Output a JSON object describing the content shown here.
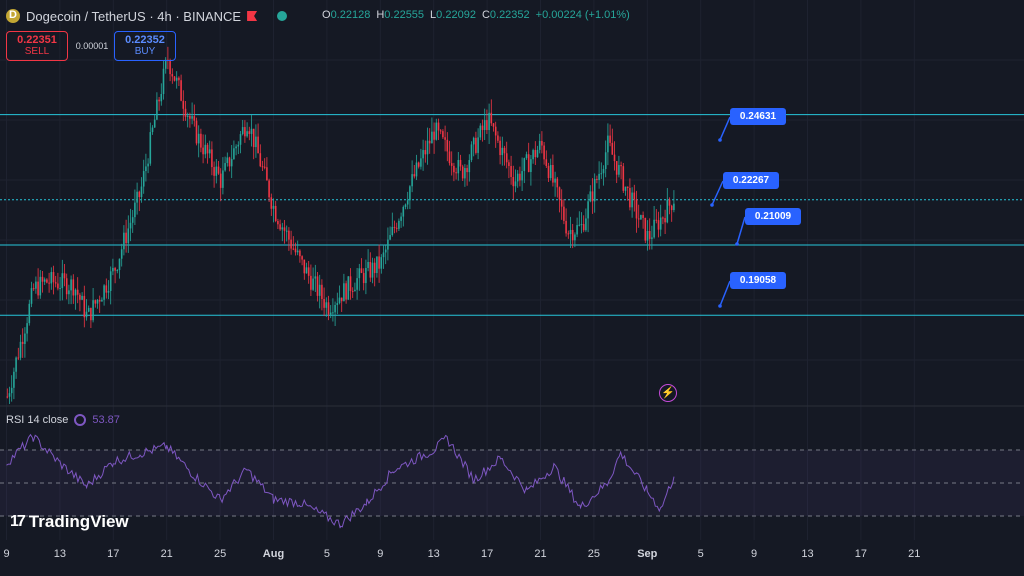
{
  "header": {
    "pair": "Dogecoin / TetherUS · 4h · BINANCE",
    "ohlc": [
      {
        "k": "O",
        "v": "0.22128"
      },
      {
        "k": "H",
        "v": "0.22555"
      },
      {
        "k": "L",
        "v": "0.22092"
      },
      {
        "k": "C",
        "v": "0.22352"
      },
      {
        "k": "",
        "v": "+0.00224 (+1.01%)"
      }
    ]
  },
  "trade": {
    "sell_price": "0.22351",
    "sell_label": "SELL",
    "spread": "0.00001",
    "buy_price": "0.22352",
    "buy_label": "BUY"
  },
  "levels": [
    {
      "text": "0.24631"
    },
    {
      "text": "0.22267"
    },
    {
      "text": "0.21009"
    },
    {
      "text": "0.19058"
    }
  ],
  "rsi": {
    "title": "RSI 14 close",
    "value": "53.87"
  },
  "brand": {
    "name": "TradingView"
  },
  "xaxis": [
    "9",
    "13",
    "17",
    "21",
    "25",
    "Aug",
    "5",
    "9",
    "13",
    "17",
    "21",
    "25",
    "Sep",
    "5",
    "9",
    "13",
    "17",
    "21"
  ],
  "colors": {
    "up": "#26a69a",
    "down": "#f23645",
    "level": "#26c6da",
    "rsi": "#7e57c2",
    "accent": "#2962ff"
  },
  "chart_data": {
    "type": "candlestick",
    "symbol": "DOGE/USDT",
    "interval": "4h",
    "price_range": [
      0.165,
      0.265
    ],
    "horizontal_levels": [
      0.24631,
      0.22267,
      0.21009,
      0.19058
    ],
    "close_path": [
      {
        "date": "2024-07-08",
        "close": 0.168
      },
      {
        "date": "2024-07-10",
        "close": 0.198
      },
      {
        "date": "2024-07-11",
        "close": 0.2
      },
      {
        "date": "2024-07-13",
        "close": 0.199
      },
      {
        "date": "2024-07-14",
        "close": 0.19
      },
      {
        "date": "2024-07-16",
        "close": 0.203
      },
      {
        "date": "2024-07-18",
        "close": 0.225
      },
      {
        "date": "2024-07-19",
        "close": 0.244
      },
      {
        "date": "2024-07-20",
        "close": 0.262
      },
      {
        "date": "2024-07-22",
        "close": 0.242
      },
      {
        "date": "2024-07-24",
        "close": 0.228
      },
      {
        "date": "2024-07-26",
        "close": 0.245
      },
      {
        "date": "2024-07-28",
        "close": 0.22
      },
      {
        "date": "2024-07-30",
        "close": 0.205
      },
      {
        "date": "2024-08-01",
        "close": 0.193
      },
      {
        "date": "2024-08-03",
        "close": 0.2
      },
      {
        "date": "2024-08-05",
        "close": 0.205
      },
      {
        "date": "2024-08-07",
        "close": 0.225
      },
      {
        "date": "2024-08-09",
        "close": 0.242
      },
      {
        "date": "2024-08-11",
        "close": 0.23
      },
      {
        "date": "2024-08-13",
        "close": 0.245
      },
      {
        "date": "2024-08-15",
        "close": 0.228
      },
      {
        "date": "2024-08-17",
        "close": 0.238
      },
      {
        "date": "2024-08-19",
        "close": 0.214
      },
      {
        "date": "2024-08-20",
        "close": 0.215
      },
      {
        "date": "2024-08-22",
        "close": 0.238
      },
      {
        "date": "2024-08-24",
        "close": 0.22
      },
      {
        "date": "2024-08-25",
        "close": 0.212
      },
      {
        "date": "2024-08-27",
        "close": 0.2235
      }
    ],
    "rsi_path": [
      {
        "date": "2024-07-08",
        "rsi": 62
      },
      {
        "date": "2024-07-10",
        "rsi": 78
      },
      {
        "date": "2024-07-12",
        "rsi": 62
      },
      {
        "date": "2024-07-14",
        "rsi": 48
      },
      {
        "date": "2024-07-16",
        "rsi": 63
      },
      {
        "date": "2024-07-18",
        "rsi": 68
      },
      {
        "date": "2024-07-20",
        "rsi": 72
      },
      {
        "date": "2024-07-22",
        "rsi": 55
      },
      {
        "date": "2024-07-24",
        "rsi": 40
      },
      {
        "date": "2024-07-26",
        "rsi": 58
      },
      {
        "date": "2024-07-28",
        "rsi": 40
      },
      {
        "date": "2024-07-30",
        "rsi": 38
      },
      {
        "date": "2024-08-02",
        "rsi": 25
      },
      {
        "date": "2024-08-04",
        "rsi": 38
      },
      {
        "date": "2024-08-06",
        "rsi": 58
      },
      {
        "date": "2024-08-09",
        "rsi": 70
      },
      {
        "date": "2024-08-10",
        "rsi": 77
      },
      {
        "date": "2024-08-12",
        "rsi": 52
      },
      {
        "date": "2024-08-14",
        "rsi": 65
      },
      {
        "date": "2024-08-16",
        "rsi": 45
      },
      {
        "date": "2024-08-18",
        "rsi": 60
      },
      {
        "date": "2024-08-20",
        "rsi": 35
      },
      {
        "date": "2024-08-22",
        "rsi": 50
      },
      {
        "date": "2024-08-23",
        "rsi": 68
      },
      {
        "date": "2024-08-25",
        "rsi": 45
      },
      {
        "date": "2024-08-26",
        "rsi": 34
      },
      {
        "date": "2024-08-27",
        "rsi": 53.87
      }
    ]
  }
}
